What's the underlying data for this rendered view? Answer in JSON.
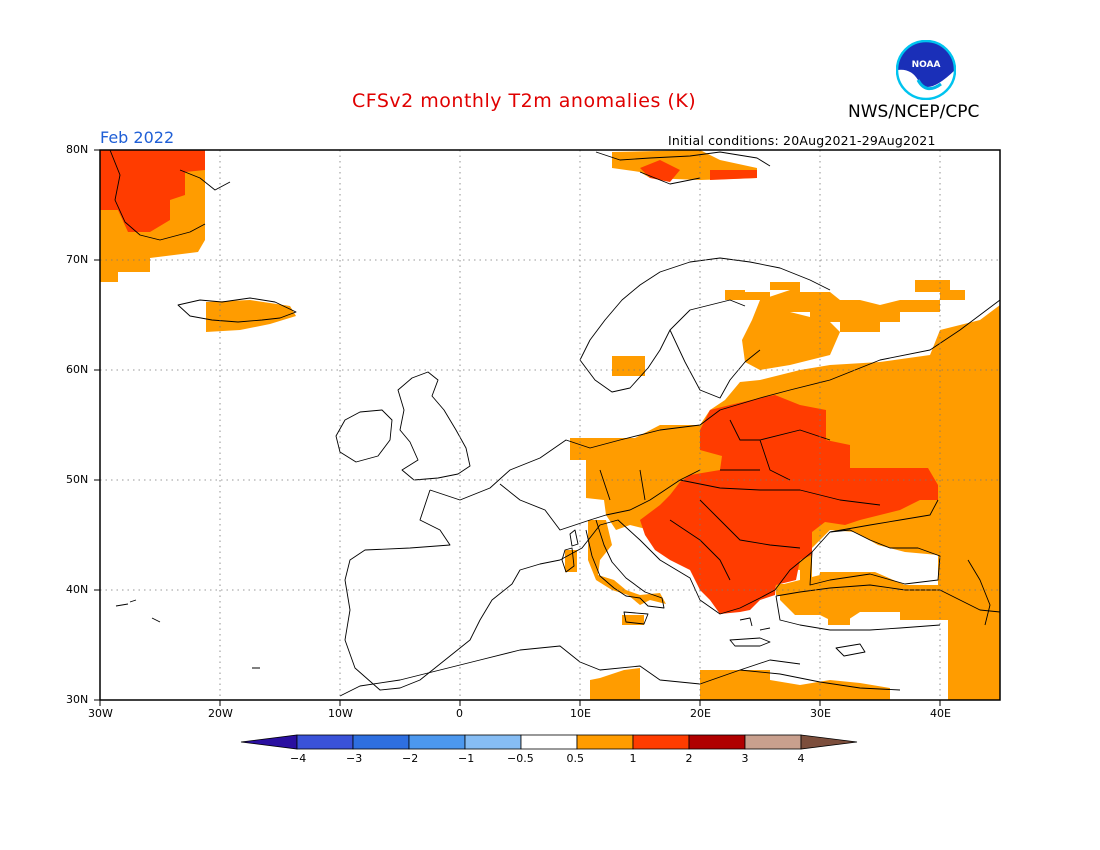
{
  "header": {
    "title": "CFSv2 monthly T2m anomalies (K)",
    "org": "NWS/NCEP/CPC",
    "month": "Feb 2022",
    "initial_conditions": "Initial conditions: 20Aug2021-29Aug2021",
    "logo_text": "NOAA"
  },
  "map": {
    "lon_range": [
      -30,
      45
    ],
    "lat_range": [
      30,
      80
    ],
    "grid": true,
    "lat_labels": [
      "80N",
      "70N",
      "60N",
      "50N",
      "40N",
      "30N"
    ],
    "lon_labels": [
      "30W",
      "20W",
      "10W",
      "0",
      "10E",
      "20E",
      "30E",
      "40E"
    ]
  },
  "legend": {
    "labels": [
      "-4",
      "-3",
      "-2",
      "-1",
      "-0.5",
      "0.5",
      "1",
      "2",
      "3",
      "4"
    ],
    "colors": [
      "#2a0fa0",
      "#3a52d8",
      "#2e6fe0",
      "#4c98ee",
      "#86bdf4",
      "#ffffff",
      "#ff9c00",
      "#ff3c00",
      "#b00000",
      "#c9a08e",
      "#7c4e3c"
    ]
  },
  "anomaly_classes": {
    "0.5-1": "#ff9c00",
    "1-2": "#ff3c00"
  }
}
